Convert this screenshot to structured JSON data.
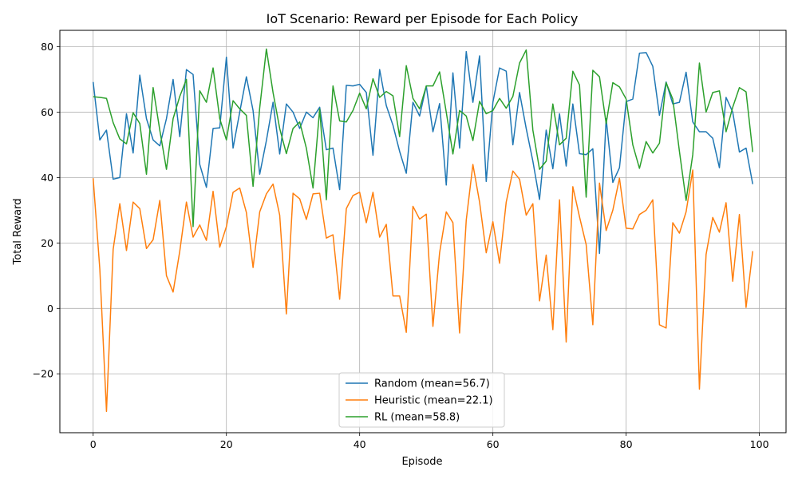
{
  "chart_data": {
    "type": "line",
    "title": "IoT Scenario: Reward per Episode for Each Policy",
    "xlabel": "Episode",
    "ylabel": "Total Reward",
    "xlim": [
      -5,
      104
    ],
    "ylim": [
      -38,
      85
    ],
    "xticks": [
      0,
      20,
      40,
      60,
      80,
      100
    ],
    "yticks": [
      -20,
      0,
      20,
      40,
      60,
      80
    ],
    "grid": true,
    "legend_position": "lower-center",
    "series": [
      {
        "name": "Random (mean=56.7)",
        "color": "#1f77b4",
        "values": [
          69.2,
          51.5,
          54.5,
          39.5,
          40.0,
          59.5,
          47.5,
          71.3,
          58.0,
          51.5,
          49.7,
          58.0,
          70.0,
          52.5,
          73.0,
          71.5,
          44.0,
          37.0,
          55.0,
          55.2,
          76.8,
          49.0,
          60.0,
          70.8,
          60.5,
          41.0,
          51.3,
          63.0,
          47.2,
          62.5,
          60.0,
          55.0,
          60.0,
          58.3,
          61.5,
          48.5,
          49.0,
          36.3,
          68.2,
          68.0,
          68.5,
          66.0,
          46.8,
          73.0,
          62.0,
          56.0,
          48.0,
          41.3,
          63.0,
          58.8,
          68.0,
          54.0,
          62.6,
          37.7,
          72.0,
          49.0,
          78.5,
          63.0,
          77.2,
          38.8,
          63.0,
          73.5,
          72.5,
          50.0,
          66.0,
          55.0,
          45.0,
          33.3,
          54.5,
          42.7,
          59.5,
          43.5,
          62.5,
          47.3,
          47.0,
          48.8,
          16.8,
          58.0,
          38.5,
          43.0,
          63.2,
          64.0,
          78.0,
          78.2,
          74.0,
          59.0,
          69.2,
          62.5,
          63.0,
          72.2,
          57.0,
          54.0,
          54.0,
          52.0,
          43.0,
          64.5,
          60.0,
          47.8,
          49.0,
          38.0
        ]
      },
      {
        "name": "Heuristic (mean=22.1)",
        "color": "#ff7f0e",
        "values": [
          39.8,
          12.0,
          -31.5,
          18.0,
          32.0,
          17.7,
          32.5,
          30.5,
          18.3,
          21.0,
          33.0,
          10.0,
          5.0,
          17.5,
          32.5,
          21.8,
          25.5,
          20.8,
          35.8,
          18.7,
          25.0,
          35.5,
          36.8,
          29.3,
          12.5,
          29.5,
          35.0,
          38.0,
          28.5,
          -1.7,
          35.2,
          33.5,
          27.2,
          35.0,
          35.2,
          21.5,
          22.5,
          2.8,
          30.5,
          34.5,
          35.5,
          26.2,
          35.5,
          21.8,
          25.7,
          3.8,
          3.8,
          -7.3,
          31.2,
          27.3,
          28.8,
          -5.5,
          17.0,
          29.5,
          26.2,
          -7.5,
          27.0,
          44.0,
          32.5,
          17.0,
          26.5,
          13.8,
          32.5,
          42.0,
          39.5,
          28.5,
          32.0,
          2.3,
          16.3,
          -6.5,
          33.2,
          -10.3,
          37.2,
          28.0,
          19.5,
          -5.0,
          38.3,
          23.8,
          30.0,
          39.8,
          24.5,
          24.3,
          28.7,
          30.0,
          33.2,
          -5.0,
          -6.0,
          26.2,
          23.0,
          29.5,
          42.3,
          -24.7,
          16.5,
          27.8,
          23.3,
          32.3,
          8.3,
          28.7,
          0.3,
          17.5
        ]
      },
      {
        "name": "RL (mean=58.8)",
        "color": "#2ca02c",
        "values": [
          64.7,
          64.5,
          64.2,
          56.8,
          51.8,
          50.3,
          59.8,
          56.5,
          41.0,
          67.5,
          54.5,
          42.5,
          58.0,
          64.8,
          70.0,
          25.0,
          66.5,
          63.0,
          73.5,
          58.0,
          51.5,
          63.5,
          61.0,
          59.0,
          37.3,
          61.3,
          79.3,
          66.0,
          55.0,
          47.3,
          55.0,
          57.0,
          49.0,
          36.8,
          61.0,
          33.2,
          68.0,
          57.3,
          57.0,
          60.5,
          65.8,
          61.0,
          70.2,
          64.5,
          66.3,
          65.0,
          52.5,
          74.2,
          64.2,
          61.0,
          68.0,
          68.0,
          72.3,
          60.0,
          47.2,
          60.5,
          58.8,
          51.3,
          63.3,
          59.5,
          60.5,
          64.2,
          61.2,
          64.8,
          75.0,
          79.0,
          54.5,
          42.5,
          45.0,
          62.5,
          50.0,
          52.0,
          72.5,
          68.3,
          34.0,
          72.8,
          70.8,
          56.5,
          69.0,
          67.7,
          64.0,
          50.0,
          42.8,
          51.0,
          47.5,
          50.5,
          69.0,
          64.0,
          48.0,
          33.0,
          47.0,
          75.0,
          60.0,
          66.0,
          66.5,
          54.0,
          61.5,
          67.5,
          66.2,
          47.8
        ]
      }
    ]
  }
}
